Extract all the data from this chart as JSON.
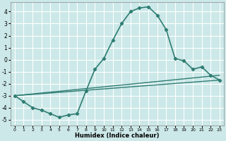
{
  "xlabel": "Humidex (Indice chaleur)",
  "ylabel": "",
  "background_color": "#cce8e8",
  "grid_color": "#ffffff",
  "line_color": "#2e7d72",
  "xlim": [
    -0.5,
    23.5
  ],
  "ylim": [
    -5.5,
    4.8
  ],
  "yticks": [
    -5,
    -4,
    -3,
    -2,
    -1,
    0,
    1,
    2,
    3,
    4
  ],
  "xticks": [
    0,
    1,
    2,
    3,
    4,
    5,
    6,
    7,
    8,
    9,
    10,
    11,
    12,
    13,
    14,
    15,
    16,
    17,
    18,
    19,
    20,
    21,
    22,
    23
  ],
  "series": [
    {
      "x": [
        0,
        1,
        2,
        3,
        4,
        5,
        6,
        7,
        8,
        9,
        10,
        11,
        12,
        13,
        14,
        15,
        16,
        17,
        18,
        19,
        20,
        21,
        22,
        23
      ],
      "y": [
        -3.0,
        -3.5,
        -4.0,
        -4.2,
        -4.5,
        -4.8,
        -4.6,
        -4.5,
        -2.6,
        -0.8,
        0.1,
        1.6,
        3.0,
        4.0,
        4.3,
        4.4,
        3.7,
        2.5,
        0.1,
        -0.1,
        -0.8,
        -0.6,
        -1.3,
        -1.7
      ],
      "marker": "D",
      "markersize": 2.2,
      "linewidth": 1.2,
      "straight": false
    },
    {
      "x": [
        0,
        23
      ],
      "y": [
        -3.0,
        -1.7
      ],
      "marker": null,
      "markersize": 0,
      "linewidth": 1.0,
      "straight": true
    },
    {
      "x": [
        0,
        23
      ],
      "y": [
        -3.0,
        -1.3
      ],
      "marker": null,
      "markersize": 0,
      "linewidth": 1.0,
      "straight": true
    }
  ]
}
